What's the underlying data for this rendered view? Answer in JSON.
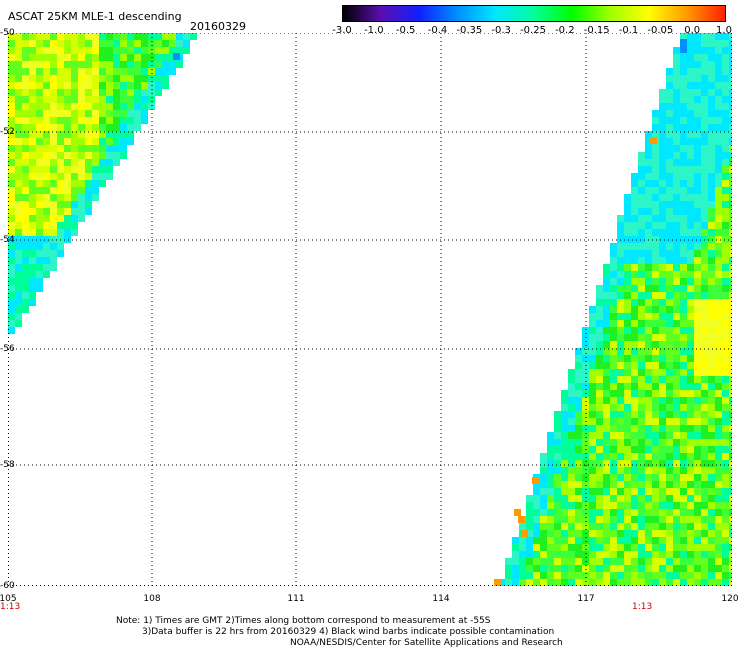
{
  "header": {
    "title": "ASCAT 25KM MLE-1 descending",
    "date": "20160329"
  },
  "colorbar": {
    "labels": [
      "-3.0",
      "-1.0",
      "-0.5",
      "-0.4",
      "-0.35",
      "-0.3",
      "-0.25",
      "-0.2",
      "-0.15",
      "-0.1",
      "-0.05",
      "0.0",
      "1.0"
    ],
    "colors": [
      "#000000",
      "#5a0fb0",
      "#1020ff",
      "#0090ff",
      "#00e8ff",
      "#00ff9a",
      "#00ff00",
      "#a0ff00",
      "#ffff00",
      "#ff9a00",
      "#ff2000"
    ]
  },
  "axes": {
    "y_ticks": [
      "-50",
      "-52",
      "-54",
      "-56",
      "-58",
      "-60"
    ],
    "x_ticks": [
      "105",
      "108",
      "111",
      "114",
      "117",
      "120"
    ],
    "time_left": "1:13",
    "time_right": "1:13"
  },
  "notes": {
    "line1": "Note: 1) Times are GMT 2)Times along bottom correspond to measurement at -55S",
    "line2": "3)Data buffer is 22 hrs from 20160329 4) Black wind barbs indicate possible contamination",
    "line3": "NOAA/NESDIS/Center for Satellite Applications and Research"
  }
}
